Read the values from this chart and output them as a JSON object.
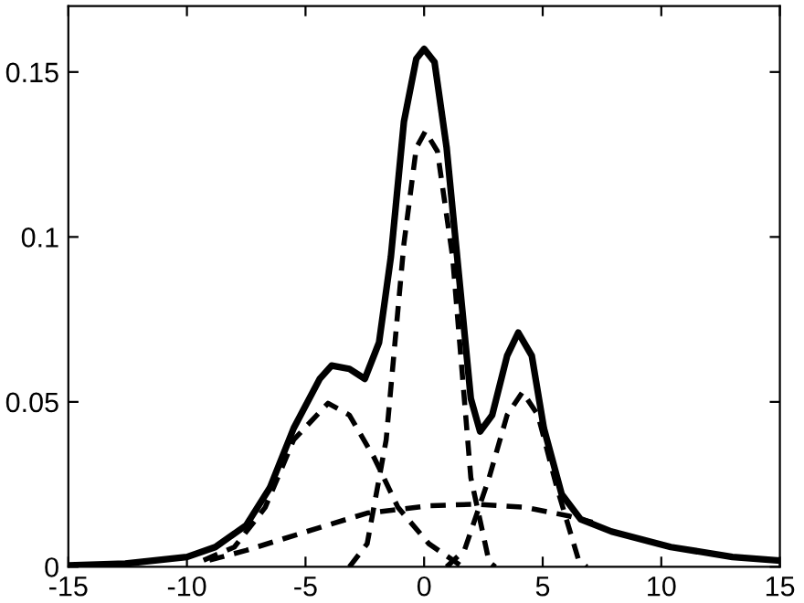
{
  "chart_data": {
    "type": "line",
    "xlim": [
      -15,
      15
    ],
    "ylim": [
      0,
      0.17
    ],
    "xticks": [
      -15,
      -10,
      -5,
      0,
      5,
      10,
      15
    ],
    "yticks": [
      0,
      0.05,
      0.1,
      0.15
    ],
    "grid": false,
    "legend": false,
    "marker": "none",
    "series": [
      {
        "color": "#000000",
        "line_style": "solid",
        "x": [
          -15,
          -12.6,
          -10,
          -8.8,
          -7.5,
          -6.5,
          -5.5,
          -4.4,
          -3.9,
          -3.15,
          -2.5,
          -1.9,
          -1.4,
          -0.85,
          -0.33,
          0,
          0.44,
          0.95,
          1.46,
          1.97,
          2.36,
          2.87,
          3.5,
          3.97,
          4.54,
          5.05,
          5.8,
          6.6,
          7.9,
          10.4,
          13,
          15
        ],
        "values": [
          0.0004,
          0.001,
          0.003,
          0.006,
          0.0126,
          0.024,
          0.042,
          0.057,
          0.061,
          0.06,
          0.057,
          0.068,
          0.094,
          0.135,
          0.154,
          0.157,
          0.153,
          0.127,
          0.089,
          0.051,
          0.041,
          0.046,
          0.064,
          0.071,
          0.064,
          0.042,
          0.022,
          0.0144,
          0.0107,
          0.006,
          0.003,
          0.0019
        ]
      },
      {
        "color": "#000000",
        "line_style": "dashed",
        "x": [
          -9.3,
          -8,
          -6.7,
          -5.5,
          -4.05,
          -3.15,
          -2.1,
          -1.1,
          0.2,
          1.5
        ],
        "values": [
          0.002,
          0.006,
          0.018,
          0.0385,
          0.0496,
          0.046,
          0.033,
          0.018,
          0.007,
          0.0006
        ]
      },
      {
        "color": "#000000",
        "line_style": "dashed",
        "x": [
          -3.15,
          -2.4,
          -1.6,
          -0.85,
          -0.33,
          0.05,
          0.56,
          1.2,
          1.97,
          2.74,
          3
        ],
        "values": [
          0,
          0.007,
          0.0385,
          0.098,
          0.127,
          0.132,
          0.126,
          0.094,
          0.027,
          0.0015,
          0
        ]
      },
      {
        "color": "#000000",
        "line_style": "dashed",
        "x": [
          0.95,
          1.7,
          2.74,
          3.5,
          4.15,
          4.8,
          5.6,
          6.5,
          6.85
        ],
        "values": [
          0,
          0.005,
          0.027,
          0.046,
          0.053,
          0.046,
          0.024,
          0.0024,
          0
        ]
      },
      {
        "color": "#000000",
        "line_style": "dashed",
        "x": [
          -9.05,
          -7.5,
          -4.95,
          -2.4,
          0.2,
          2.2,
          4.3,
          6.1,
          7.1
        ],
        "values": [
          0.002,
          0.005,
          0.0107,
          0.0163,
          0.0185,
          0.019,
          0.018,
          0.0154,
          0.0135
        ]
      }
    ]
  }
}
